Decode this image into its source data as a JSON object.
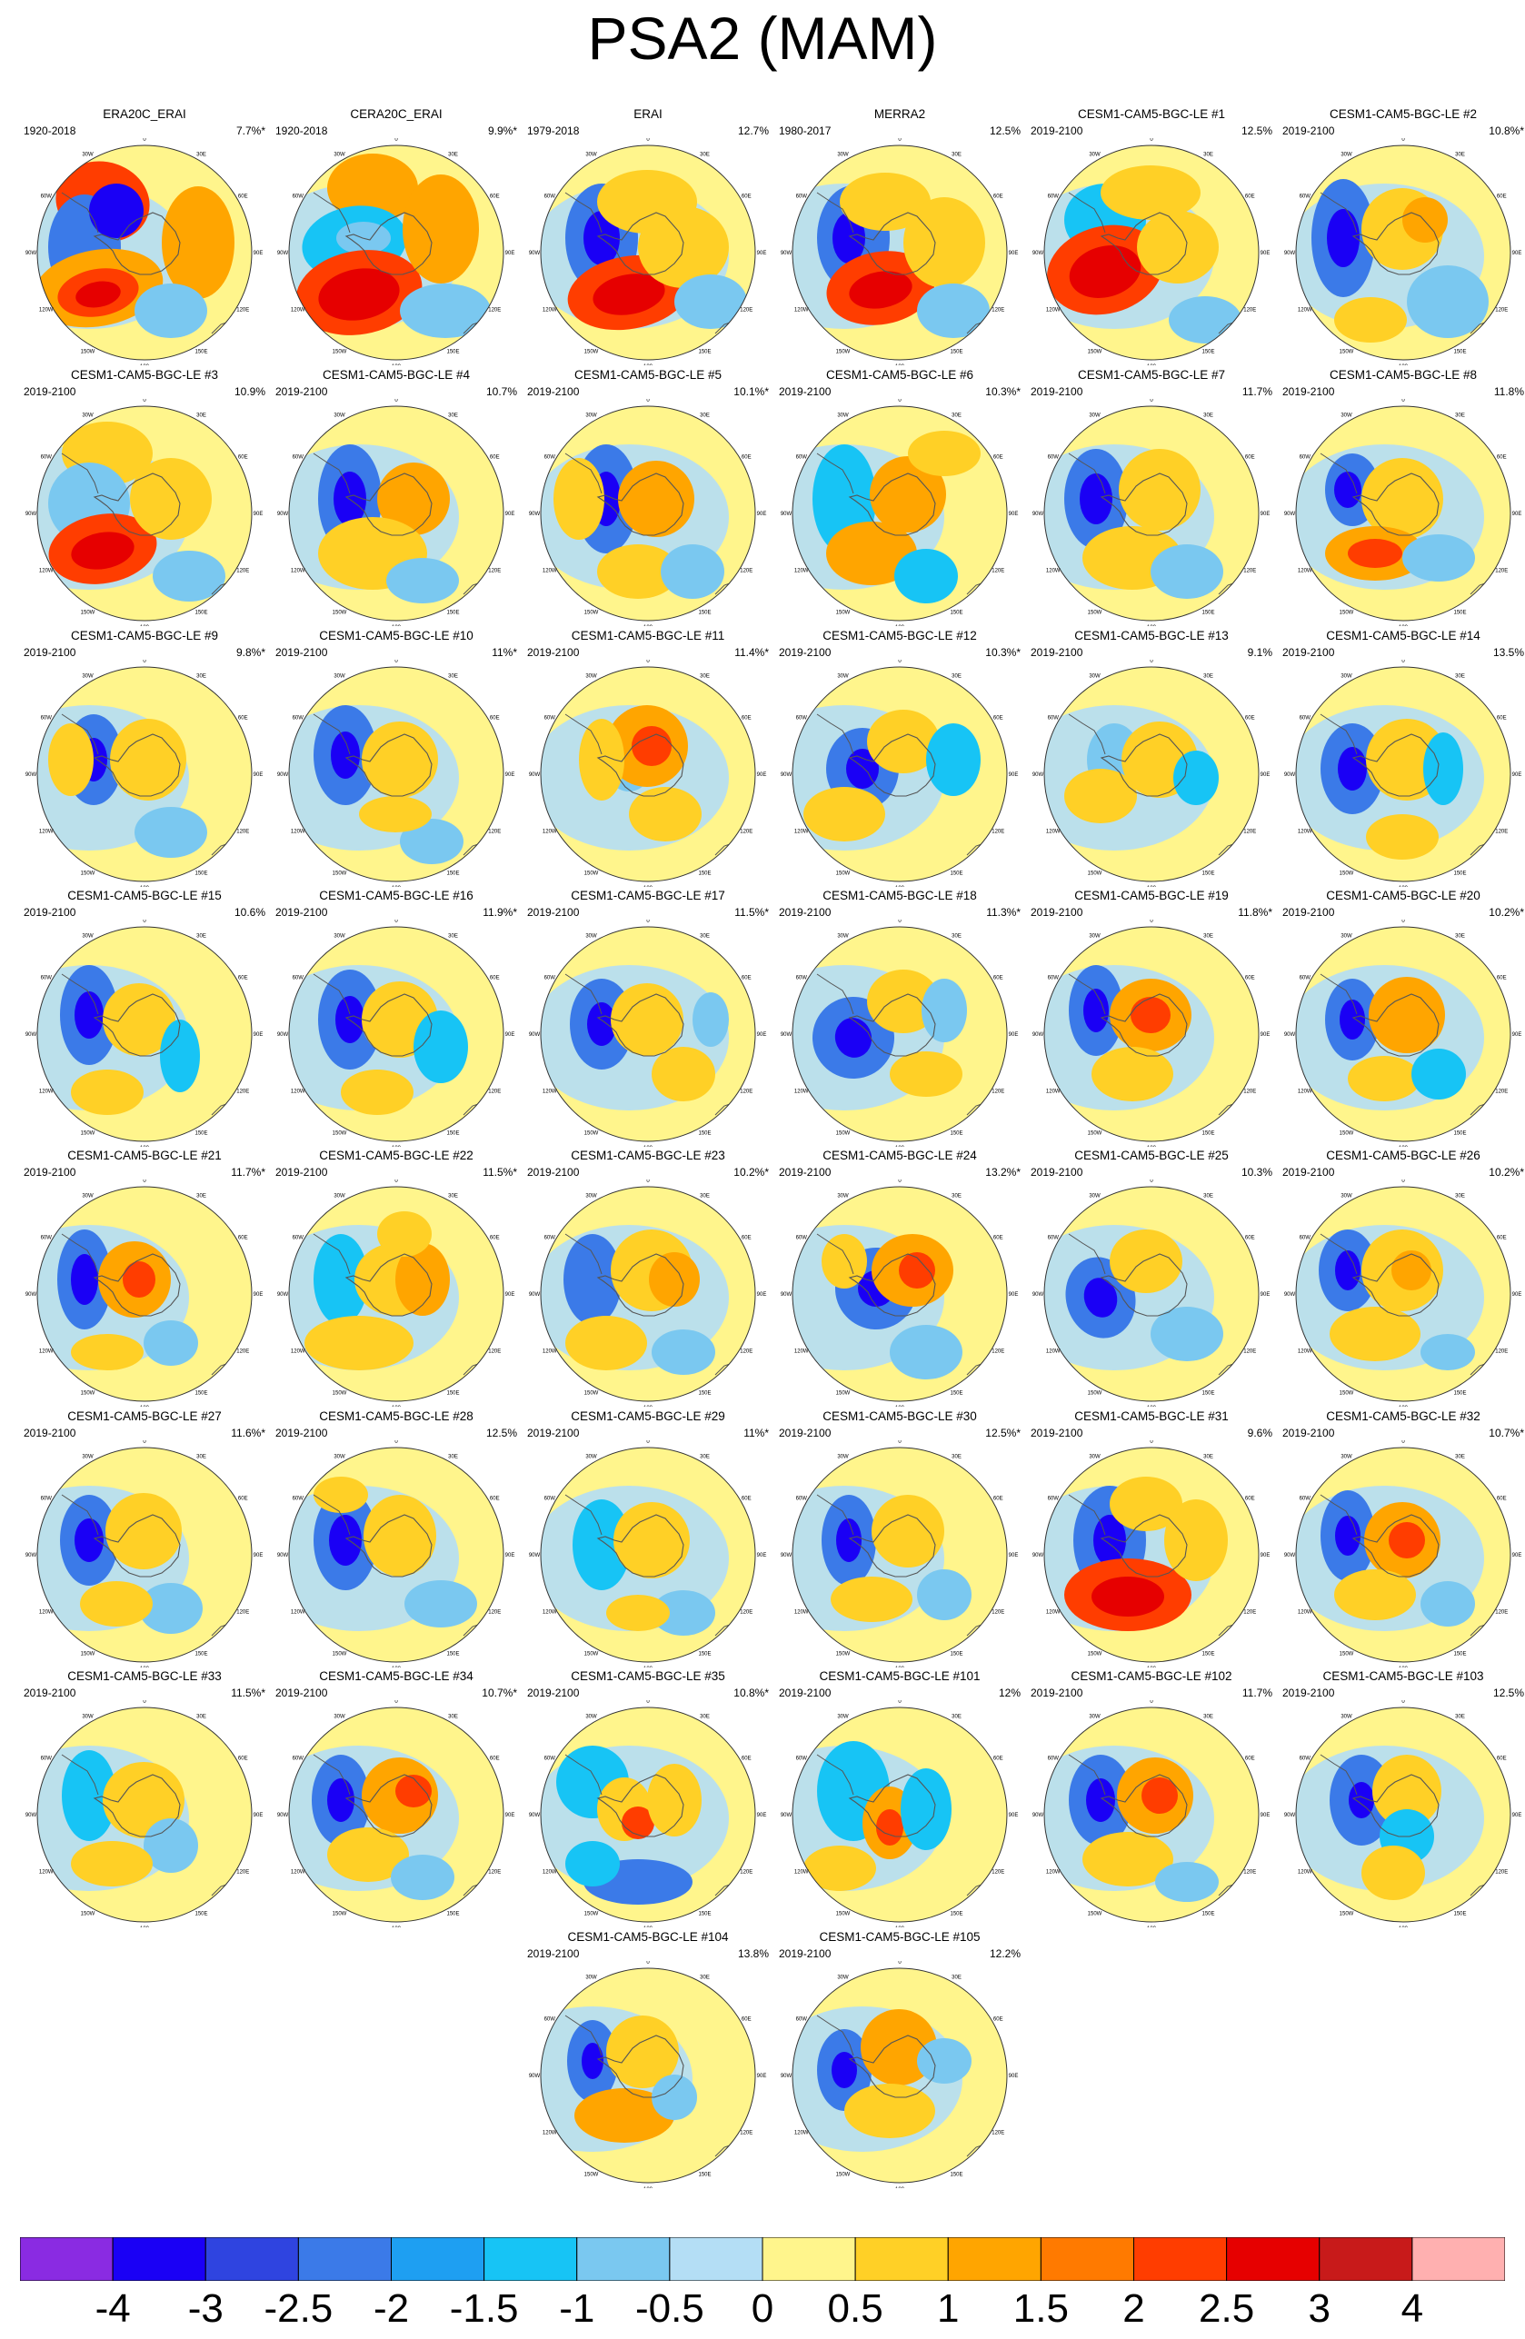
{
  "title": "PSA2 (MAM)",
  "colors": [
    "#8a2be2",
    "#1a00f5",
    "#2f44e0",
    "#3b7ae8",
    "#1e9ff2",
    "#17c4f5",
    "#7ac8f0",
    "#b4def5",
    "#fff58c",
    "#ffd026",
    "#ffa500",
    "#ff7a00",
    "#ff3d00",
    "#e60000",
    "#c81a1a",
    "#ffb0b0"
  ],
  "colorbar_labels": [
    "-4",
    "-3",
    "-2.5",
    "-2",
    "-1.5",
    "-1",
    "-0.5",
    "0",
    "0.5",
    "1",
    "1.5",
    "2",
    "2.5",
    "3",
    "4"
  ],
  "map_labels": {
    "lon_0": "0",
    "lon_30e": "30E",
    "lon_60e": "60E",
    "lon_90e": "90E",
    "lon_120e": "120E",
    "lon_150e": "150E",
    "lon_180": "180",
    "lon_150w": "150W",
    "lon_120w": "120W",
    "lon_90w": "90W",
    "lon_60w": "60W",
    "lon_30w": "30W"
  },
  "panels": [
    {
      "title": "ERA20C_ERAI",
      "years": "1920-2018",
      "pct": "7.7%*"
    },
    {
      "title": "CERA20C_ERAI",
      "years": "1920-2018",
      "pct": "9.9%*"
    },
    {
      "title": "ERAI",
      "years": "1979-2018",
      "pct": "12.7%"
    },
    {
      "title": "MERRA2",
      "years": "1980-2017",
      "pct": "12.5%"
    },
    {
      "title": "CESM1-CAM5-BGC-LE #1",
      "years": "2019-2100",
      "pct": "12.5%"
    },
    {
      "title": "CESM1-CAM5-BGC-LE #2",
      "years": "2019-2100",
      "pct": "10.8%*"
    },
    {
      "title": "CESM1-CAM5-BGC-LE #3",
      "years": "2019-2100",
      "pct": "10.9%"
    },
    {
      "title": "CESM1-CAM5-BGC-LE #4",
      "years": "2019-2100",
      "pct": "10.7%"
    },
    {
      "title": "CESM1-CAM5-BGC-LE #5",
      "years": "2019-2100",
      "pct": "10.1%*"
    },
    {
      "title": "CESM1-CAM5-BGC-LE #6",
      "years": "2019-2100",
      "pct": "10.3%*"
    },
    {
      "title": "CESM1-CAM5-BGC-LE #7",
      "years": "2019-2100",
      "pct": "11.7%"
    },
    {
      "title": "CESM1-CAM5-BGC-LE #8",
      "years": "2019-2100",
      "pct": "11.8%"
    },
    {
      "title": "CESM1-CAM5-BGC-LE #9",
      "years": "2019-2100",
      "pct": "9.8%*"
    },
    {
      "title": "CESM1-CAM5-BGC-LE #10",
      "years": "2019-2100",
      "pct": "11%*"
    },
    {
      "title": "CESM1-CAM5-BGC-LE #11",
      "years": "2019-2100",
      "pct": "11.4%*"
    },
    {
      "title": "CESM1-CAM5-BGC-LE #12",
      "years": "2019-2100",
      "pct": "10.3%*"
    },
    {
      "title": "CESM1-CAM5-BGC-LE #13",
      "years": "2019-2100",
      "pct": "9.1%"
    },
    {
      "title": "CESM1-CAM5-BGC-LE #14",
      "years": "2019-2100",
      "pct": "13.5%"
    },
    {
      "title": "CESM1-CAM5-BGC-LE #15",
      "years": "2019-2100",
      "pct": "10.6%"
    },
    {
      "title": "CESM1-CAM5-BGC-LE #16",
      "years": "2019-2100",
      "pct": "11.9%*"
    },
    {
      "title": "CESM1-CAM5-BGC-LE #17",
      "years": "2019-2100",
      "pct": "11.5%*"
    },
    {
      "title": "CESM1-CAM5-BGC-LE #18",
      "years": "2019-2100",
      "pct": "11.3%*"
    },
    {
      "title": "CESM1-CAM5-BGC-LE #19",
      "years": "2019-2100",
      "pct": "11.8%*"
    },
    {
      "title": "CESM1-CAM5-BGC-LE #20",
      "years": "2019-2100",
      "pct": "10.2%*"
    },
    {
      "title": "CESM1-CAM5-BGC-LE #21",
      "years": "2019-2100",
      "pct": "11.7%*"
    },
    {
      "title": "CESM1-CAM5-BGC-LE #22",
      "years": "2019-2100",
      "pct": "11.5%*"
    },
    {
      "title": "CESM1-CAM5-BGC-LE #23",
      "years": "2019-2100",
      "pct": "10.2%*"
    },
    {
      "title": "CESM1-CAM5-BGC-LE #24",
      "years": "2019-2100",
      "pct": "13.2%*"
    },
    {
      "title": "CESM1-CAM5-BGC-LE #25",
      "years": "2019-2100",
      "pct": "10.3%"
    },
    {
      "title": "CESM1-CAM5-BGC-LE #26",
      "years": "2019-2100",
      "pct": "10.2%*"
    },
    {
      "title": "CESM1-CAM5-BGC-LE #27",
      "years": "2019-2100",
      "pct": "11.6%*"
    },
    {
      "title": "CESM1-CAM5-BGC-LE #28",
      "years": "2019-2100",
      "pct": "12.5%"
    },
    {
      "title": "CESM1-CAM5-BGC-LE #29",
      "years": "2019-2100",
      "pct": "11%*"
    },
    {
      "title": "CESM1-CAM5-BGC-LE #30",
      "years": "2019-2100",
      "pct": "12.5%*"
    },
    {
      "title": "CESM1-CAM5-BGC-LE #31",
      "years": "2019-2100",
      "pct": "9.6%"
    },
    {
      "title": "CESM1-CAM5-BGC-LE #32",
      "years": "2019-2100",
      "pct": "10.7%*"
    },
    {
      "title": "CESM1-CAM5-BGC-LE #33",
      "years": "2019-2100",
      "pct": "11.5%*"
    },
    {
      "title": "CESM1-CAM5-BGC-LE #34",
      "years": "2019-2100",
      "pct": "10.7%*"
    },
    {
      "title": "CESM1-CAM5-BGC-LE #35",
      "years": "2019-2100",
      "pct": "10.8%*"
    },
    {
      "title": "CESM1-CAM5-BGC-LE #101",
      "years": "2019-2100",
      "pct": "12%"
    },
    {
      "title": "CESM1-CAM5-BGC-LE #102",
      "years": "2019-2100",
      "pct": "11.7%"
    },
    {
      "title": "CESM1-CAM5-BGC-LE #103",
      "years": "2019-2100",
      "pct": "12.5%"
    },
    {
      "title": "CESM1-CAM5-BGC-LE #104",
      "years": "2019-2100",
      "pct": "13.8%"
    },
    {
      "title": "CESM1-CAM5-BGC-LE #105",
      "years": "2019-2100",
      "pct": "12.2%"
    }
  ]
}
